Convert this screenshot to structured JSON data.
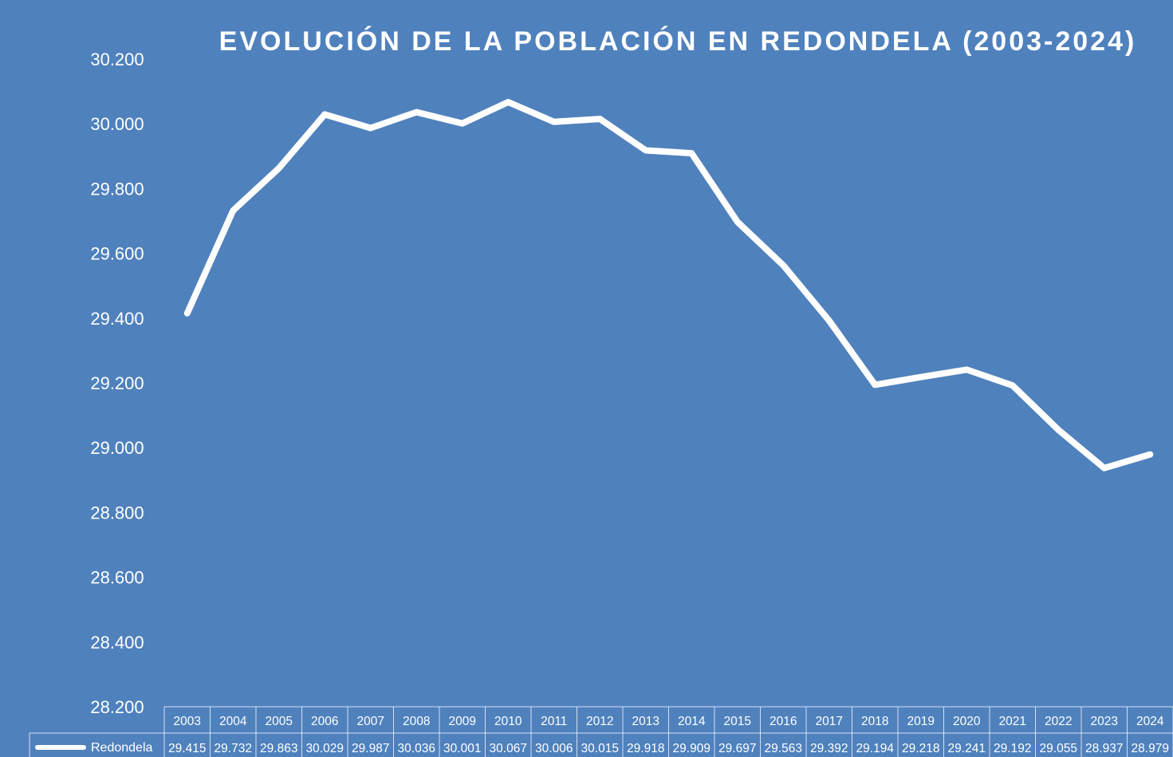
{
  "chart_data": {
    "type": "line",
    "title": "EVOLUCIÓN DE LA POBLACIÓN EN REDONDELA (2003-2024)",
    "categories": [
      "2003",
      "2004",
      "2005",
      "2006",
      "2007",
      "2008",
      "2009",
      "2010",
      "2011",
      "2012",
      "2013",
      "2014",
      "2015",
      "2016",
      "2017",
      "2018",
      "2019",
      "2020",
      "2021",
      "2022",
      "2023",
      "2024"
    ],
    "series": [
      {
        "name": "Redondela",
        "values": [
          29415,
          29732,
          29863,
          30029,
          29987,
          30036,
          30001,
          30067,
          30006,
          30015,
          29918,
          29909,
          29697,
          29563,
          29392,
          29194,
          29218,
          29241,
          29192,
          29055,
          28937,
          28979
        ],
        "labels": [
          "29.415",
          "29.732",
          "29.863",
          "30.029",
          "29.987",
          "30.036",
          "30.001",
          "30.067",
          "30.006",
          "30.015",
          "29.918",
          "29.909",
          "29.697",
          "29.563",
          "29.392",
          "29.194",
          "29.218",
          "29.241",
          "29.192",
          "29.055",
          "28.937",
          "28.979"
        ],
        "color": "#ffffff"
      }
    ],
    "ylim": [
      28200,
      30200
    ],
    "yticks": [
      28200,
      28400,
      28600,
      28800,
      29000,
      29200,
      29400,
      29600,
      29800,
      30000,
      30200
    ],
    "ytick_labels": [
      "28.200",
      "28.400",
      "28.600",
      "28.800",
      "29.000",
      "29.200",
      "29.400",
      "29.600",
      "29.800",
      "30.000",
      "30.200"
    ],
    "drop_lines": true,
    "data_table": true,
    "grid": false,
    "background": "#4f81bd"
  }
}
